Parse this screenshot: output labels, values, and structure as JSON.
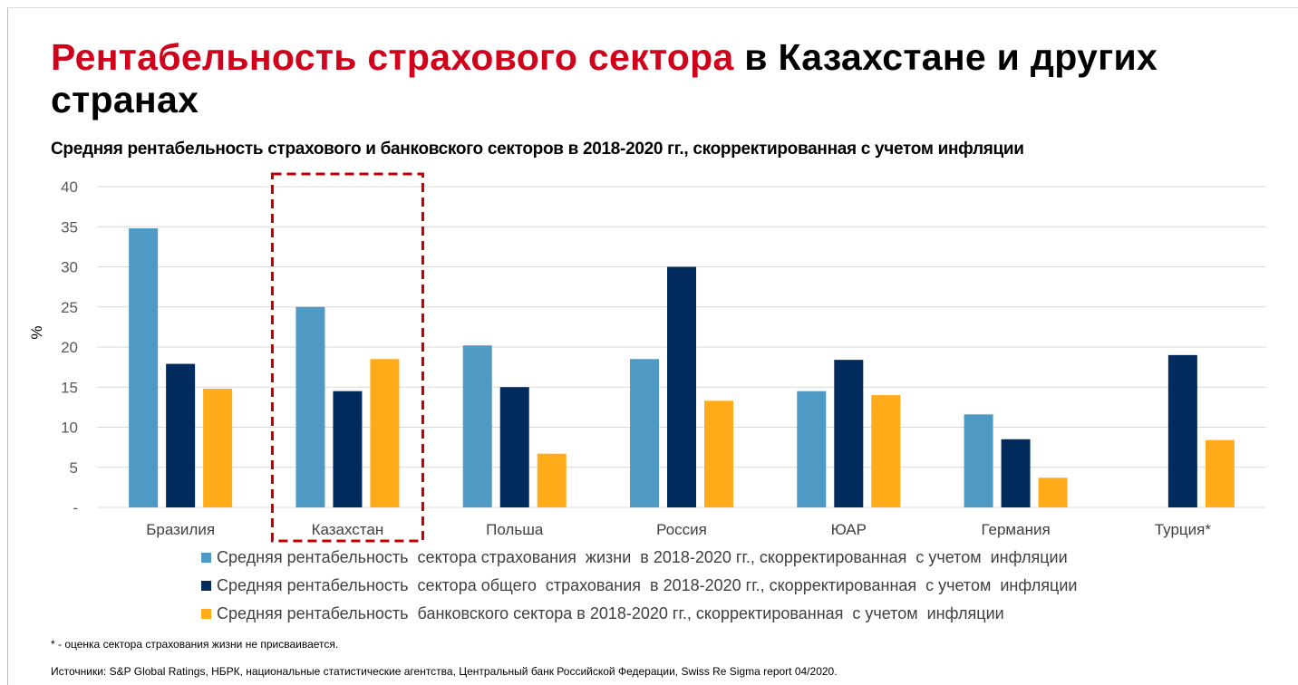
{
  "title": {
    "part_red": "Рентабельность страхового сектора",
    "part_black": " в Казахстане и других странах"
  },
  "subtitle": "Средняя рентабельность страхового и банковского секторов в 2018-2020 гг., скорректированная с учетом инфляции",
  "chart_data": {
    "type": "bar",
    "ylabel": "%",
    "ylim": [
      0,
      40
    ],
    "yticks": [
      0,
      5,
      10,
      15,
      20,
      25,
      30,
      35,
      40
    ],
    "ytick_labels": [
      "-",
      "5",
      "10",
      "15",
      "20",
      "25",
      "30",
      "35",
      "40"
    ],
    "grid": true,
    "legend_position": "bottom",
    "categories": [
      "Бразилия",
      "Казахстан",
      "Польша",
      "Россия",
      "ЮАР",
      "Германия",
      "Турция*"
    ],
    "highlighted_category": "Казахстан",
    "series": [
      {
        "name": "Средняя рентабельность  сектора страхования  жизни  в 2018-2020 гг., скорректированная  с учетом  инфляции",
        "color": "#4f9ac4",
        "values": [
          34.8,
          25.0,
          20.2,
          18.5,
          14.5,
          11.6,
          null
        ]
      },
      {
        "name": "Средняя рентабельность  сектора общего  страхования  в 2018-2020 гг., скорректированная  с учетом  инфляции",
        "color": "#002b5c",
        "values": [
          17.9,
          14.5,
          15.0,
          30.0,
          18.4,
          8.5,
          19.0
        ]
      },
      {
        "name": "Средняя рентабельность  банковского сектора в 2018-2020 гг., скорректированная  с учетом  инфляции",
        "color": "#ffab1a",
        "values": [
          14.8,
          18.5,
          6.7,
          13.3,
          14.0,
          3.7,
          8.4
        ]
      }
    ]
  },
  "footnote": "* - оценка  сектора страхования жизни не присваивается.",
  "sources": "Источники: S&P  Global  Ratings,  НБРК,  национальные  статистические агентства, Центральный банк Российской Федерации,  Swiss Re Sigma  report 04/2020."
}
